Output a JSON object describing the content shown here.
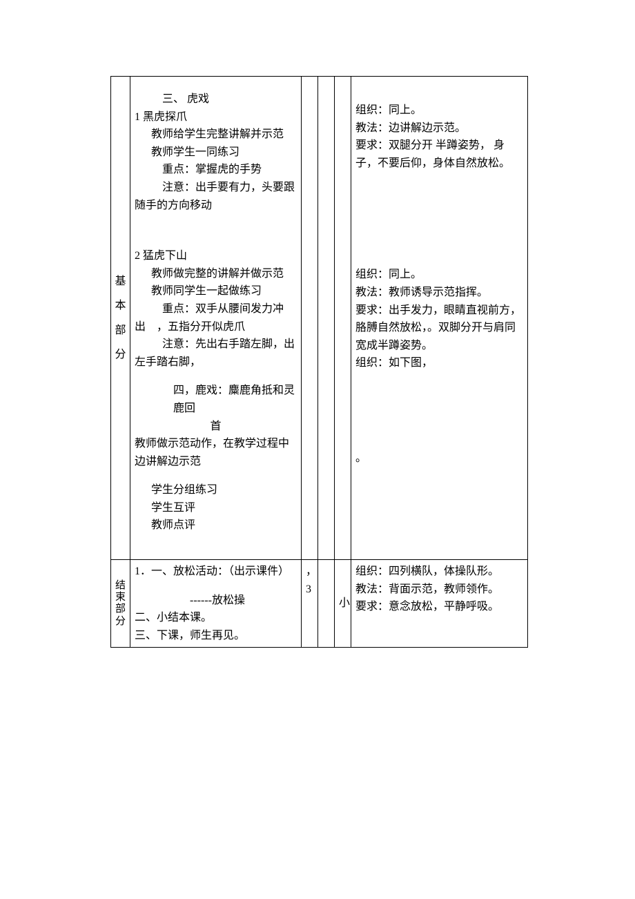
{
  "row1": {
    "label_chars": [
      "基",
      "本",
      "部",
      "分"
    ],
    "content": {
      "sec3_title": "三、 虎戏",
      "sec3_item1_title": "1   黑虎探爪",
      "sec3_item1_l1": "教师给学生完整讲解并示范",
      "sec3_item1_l2": "教师学生一同练习",
      "sec3_item1_l3": "重点：掌握虎的手势",
      "sec3_item1_l4": "注意：出手要有力，头要跟随手的方向移动",
      "sec3_item2_title": "2  猛虎下山",
      "sec3_item2_l1": "教师做完整的讲解并做示范",
      "sec3_item2_l2": "教师同学生一起做练习",
      "sec3_item2_l3": "重点：双手从腰间发力冲出    ，五指分开似虎爪",
      "sec3_item2_l4": "注意：先出右手踏左脚，出左手踏右脚，",
      "sec4_title_l1": "四，鹿戏：麋鹿角抵和灵鹿回",
      "sec4_title_l2": "首",
      "sec4_l1": "教师做示范动作，在教学过程中边讲解边示范",
      "sec4_l2": "学生分组练习",
      "sec4_l3": "学生互评",
      "sec4_l4": "教师点评"
    },
    "right": {
      "b1_l1": "组织：同上。",
      "b1_l2": "教法：边讲解边示范。",
      "b1_l3": "要求：双腿分开 半蹲姿势， 身子，不要后仰，身体自然放松。",
      "b2_l1": "组织：同上。",
      "b2_l2": "教法：教师诱导示范指挥。",
      "b2_l3": "要求：出手发力，眼睛直视前方，胳膊自然放松，。双脚分开与肩同宽成半蹲姿势。",
      "b2_l4": "组织：如下图，",
      "dot": "。"
    }
  },
  "row2": {
    "label": "结束部分",
    "content": {
      "l1": "1．一、放松活动：（出示课件）",
      "l2": "------放松操",
      "l3": "二、小结本课。",
      "l4": "三、下课，师生再见。"
    },
    "n1": "，3",
    "n3": "小",
    "right": {
      "l1": "组织：四列横队，体操队形。",
      "l2": "教法：背面示范，教师领作。",
      "l3": "要求：意念放松，平静呼吸。"
    }
  }
}
